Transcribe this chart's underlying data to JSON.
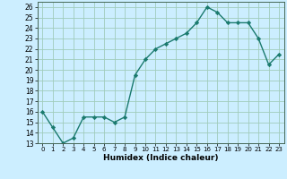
{
  "x": [
    0,
    1,
    2,
    3,
    4,
    5,
    6,
    7,
    8,
    9,
    10,
    11,
    12,
    13,
    14,
    15,
    16,
    17,
    18,
    19,
    20,
    21,
    22,
    23
  ],
  "y": [
    16,
    14.5,
    13,
    13.5,
    15.5,
    15.5,
    15.5,
    15,
    15.5,
    19.5,
    21,
    22,
    22.5,
    23,
    23.5,
    24.5,
    26,
    25.5,
    24.5,
    24.5,
    24.5,
    23,
    20.5,
    21.5
  ],
  "line_color": "#1a7a6e",
  "marker": "D",
  "marker_size": 2.2,
  "bg_color": "#cceeff",
  "grid_color": "#a0ccbb",
  "xlabel": "Humidex (Indice chaleur)",
  "xlim": [
    -0.5,
    23.5
  ],
  "ylim": [
    13,
    26.5
  ],
  "yticks": [
    13,
    14,
    15,
    16,
    17,
    18,
    19,
    20,
    21,
    22,
    23,
    24,
    25,
    26
  ],
  "xticks": [
    0,
    1,
    2,
    3,
    4,
    5,
    6,
    7,
    8,
    9,
    10,
    11,
    12,
    13,
    14,
    15,
    16,
    17,
    18,
    19,
    20,
    21,
    22,
    23
  ]
}
